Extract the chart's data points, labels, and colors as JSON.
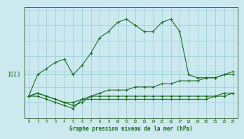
{
  "background_color": "#cce9f0",
  "grid_color": "#99ccd9",
  "line_color": "#1a6b1a",
  "label_color": "#1a6b1a",
  "title": "Graphe pression niveau de la mer (hPa)",
  "hline_value": 1023,
  "x_hours": [
    0,
    1,
    2,
    3,
    4,
    5,
    6,
    7,
    8,
    9,
    10,
    11,
    12,
    13,
    14,
    15,
    16,
    17,
    18,
    19,
    20,
    21,
    22,
    23
  ],
  "line1": [
    1016,
    1023,
    1025,
    1027,
    1028,
    1023,
    1026,
    1030,
    1035,
    1037,
    1040,
    1041,
    1039,
    1037,
    1037,
    1040,
    1041,
    1037,
    1023,
    1022,
    1022,
    1022,
    1023,
    1024
  ],
  "line2": [
    1016,
    1017,
    1016,
    1015,
    1014,
    1013,
    1014,
    1016,
    1017,
    1018,
    1018,
    1018,
    1019,
    1019,
    1019,
    1020,
    1020,
    1021,
    1021,
    1021,
    1022,
    1022,
    1023,
    1023
  ],
  "line3": [
    1016,
    1017,
    1016,
    1015,
    1014,
    1014,
    1015,
    1015,
    1015,
    1015,
    1015,
    1015,
    1015,
    1015,
    1015,
    1015,
    1015,
    1015,
    1015,
    1015,
    1015,
    1016,
    1016,
    1017
  ],
  "line4": [
    1016,
    1016,
    1015,
    1014,
    1013,
    1012,
    1015,
    1016,
    1016,
    1016,
    1016,
    1016,
    1016,
    1016,
    1016,
    1016,
    1016,
    1016,
    1016,
    1016,
    1016,
    1016,
    1017,
    1017
  ],
  "ylim_min": 1009,
  "ylim_max": 1045,
  "spine_color": "#336633"
}
